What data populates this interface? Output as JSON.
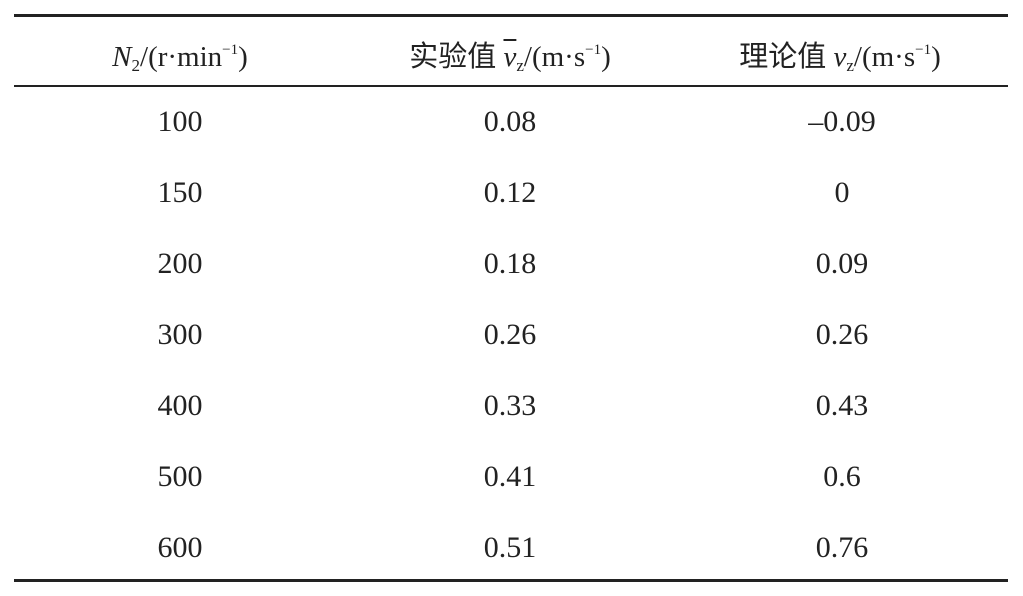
{
  "table": {
    "header": [
      [
        "N",
        "2",
        "/(r·min",
        "−1",
        ")"
      ],
      [
        "实验值 ",
        "v",
        "z",
        "/(m·s",
        "−1",
        ")"
      ],
      [
        "理论值 ",
        "v",
        "z",
        "/(m·s",
        "−1",
        ")"
      ]
    ],
    "rows": [
      [
        "100",
        "0.08",
        "–0.09"
      ],
      [
        "150",
        "0.12",
        "0"
      ],
      [
        "200",
        "0.18",
        "0.09"
      ],
      [
        "300",
        "0.26",
        "0.26"
      ],
      [
        "400",
        "0.33",
        "0.43"
      ],
      [
        "500",
        "0.41",
        "0.6"
      ],
      [
        "600",
        "0.51",
        "0.76"
      ]
    ]
  }
}
